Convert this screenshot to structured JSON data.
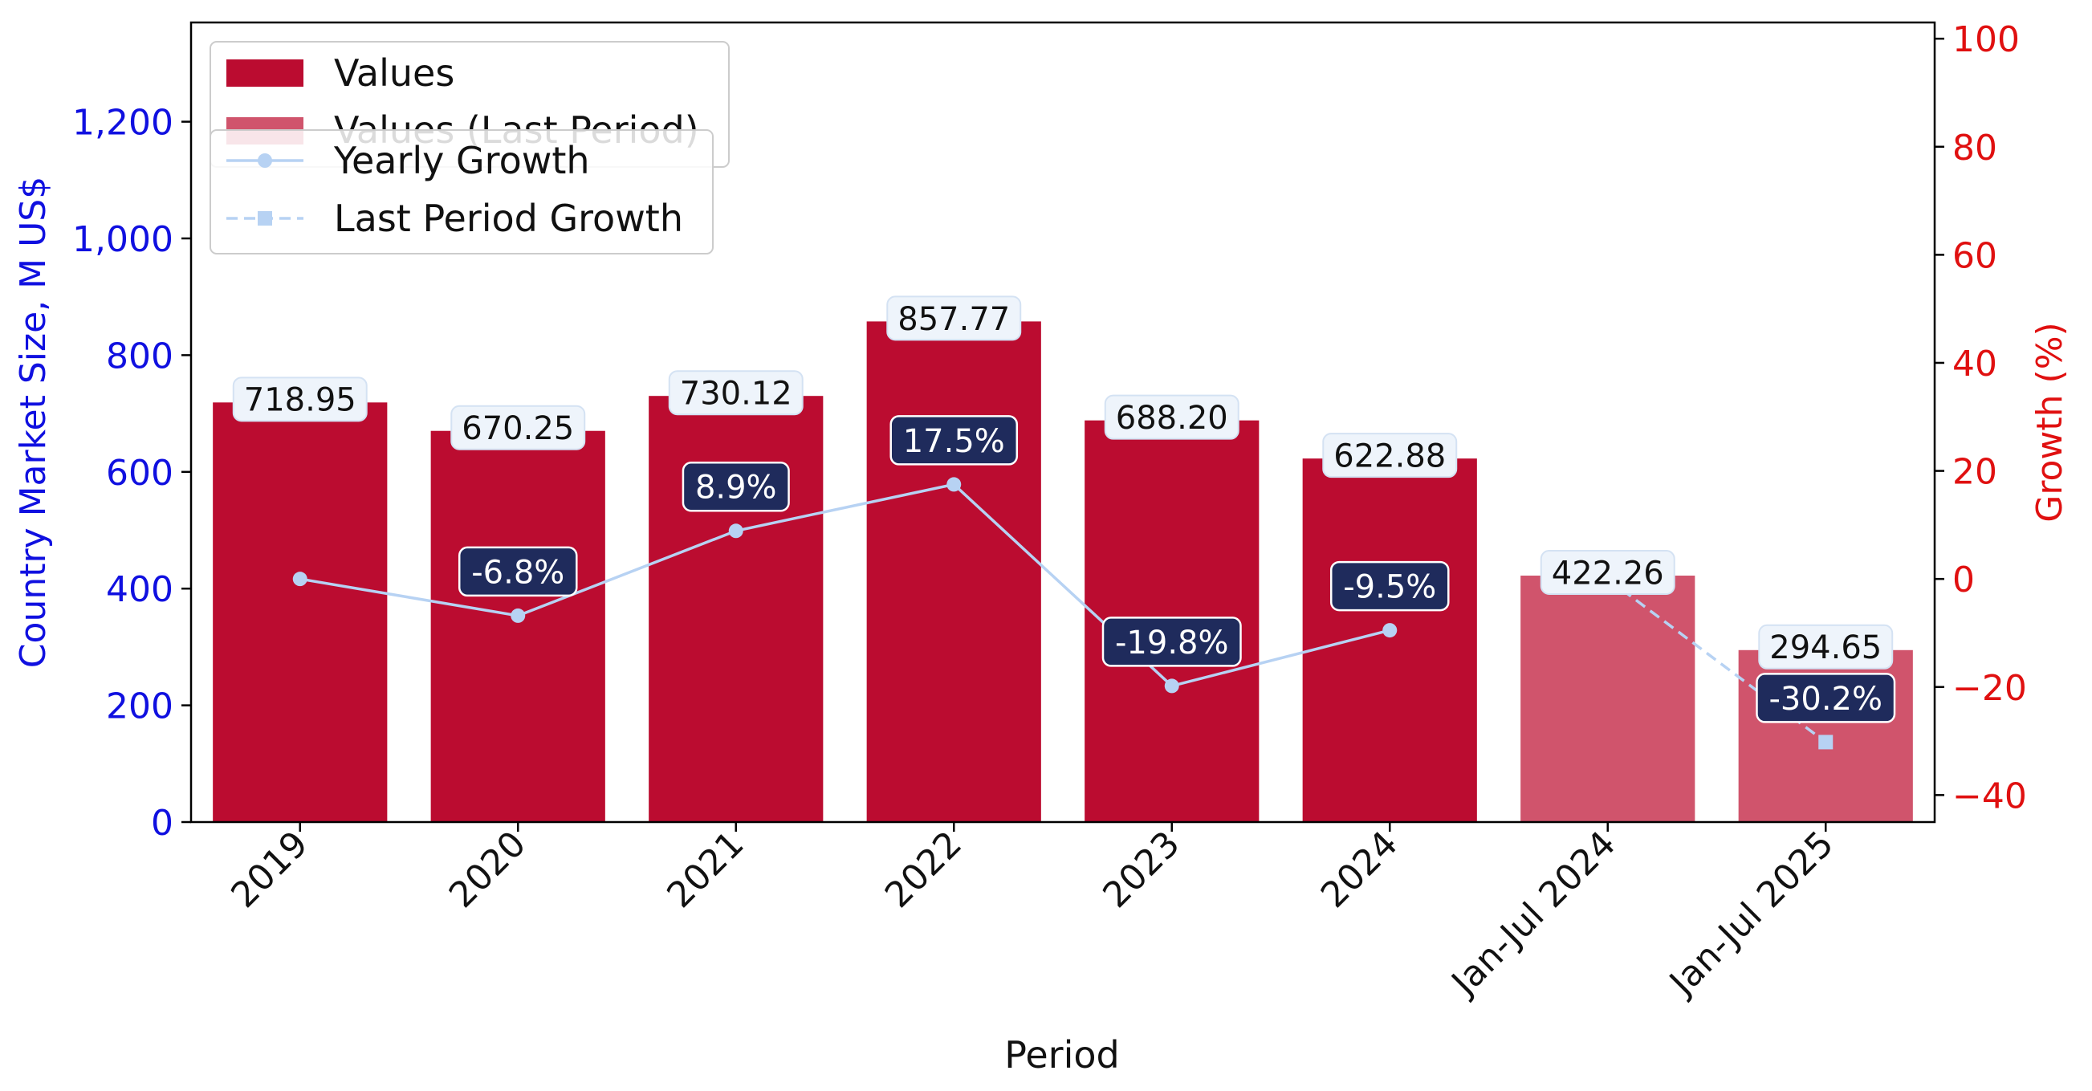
{
  "chart_data": {
    "type": "bar",
    "categories": [
      "2019",
      "2020",
      "2021",
      "2022",
      "2023",
      "2024",
      "Jan-Jul 2024",
      "Jan-Jul 2025"
    ],
    "values": [
      718.95,
      670.25,
      730.12,
      857.77,
      688.2,
      622.88,
      422.26,
      294.65
    ],
    "value_labels": [
      "718.95",
      "670.25",
      "730.12",
      "857.77",
      "688.20",
      "622.88",
      "422.26",
      "294.65"
    ],
    "last_period_flags": [
      false,
      false,
      false,
      false,
      false,
      false,
      true,
      true
    ],
    "xlabel": "Period",
    "ylabel": "Country Market Size, M US$",
    "y2label": "Growth (%)",
    "ylim": [
      0,
      1370
    ],
    "y2lim": [
      -45,
      103
    ],
    "yticks": [
      0,
      200,
      400,
      600,
      800,
      1000,
      1200
    ],
    "ytick_labels": [
      "0",
      "200",
      "400",
      "600",
      "800",
      "1,000",
      "1,200"
    ],
    "y2ticks": [
      -40,
      -20,
      0,
      20,
      40,
      60,
      80,
      100
    ],
    "y2tick_labels": [
      "−40",
      "−20",
      "0",
      "20",
      "40",
      "60",
      "80",
      "100"
    ],
    "yearly_growth": {
      "name": "Yearly Growth",
      "indices": [
        0,
        1,
        2,
        3,
        4,
        5
      ],
      "values": [
        0,
        -6.8,
        8.9,
        17.5,
        -19.8,
        -9.5
      ],
      "labels": [
        null,
        "-6.8%",
        "8.9%",
        "17.5%",
        "-19.8%",
        "-9.5%"
      ]
    },
    "last_period_growth": {
      "name": "Last Period Growth",
      "indices": [
        6,
        7
      ],
      "values": [
        0,
        -30.2
      ],
      "labels": [
        null,
        "-30.2%"
      ]
    },
    "legend": {
      "placement": "top-left",
      "entries": [
        "Values",
        "Values (Last Period)",
        "Yearly Growth",
        "Last Period Growth"
      ]
    },
    "grid": false,
    "colors": {
      "bar": "#bb0c30",
      "bar_last": "#d0546c",
      "line": "#b7d2f3",
      "left_axis": "#1010e0",
      "right_axis": "#e01010",
      "value_label_bg": "#eef4fb",
      "growth_label_bg": "#1f2b5c"
    }
  }
}
